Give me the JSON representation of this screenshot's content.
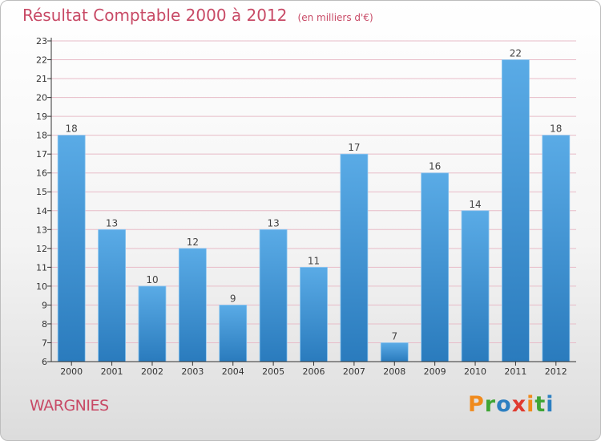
{
  "title": "Résultat Comptable 2000 à 2012",
  "subtitle": "(en milliers d'€)",
  "place": "WARGNIES",
  "brand": {
    "letters": [
      "P",
      "r",
      "o",
      "x",
      "i",
      "t",
      "i"
    ],
    "colors": [
      "#f08a1c",
      "#3fa535",
      "#2c7fc1",
      "#e03a2f",
      "#f08a1c",
      "#3fa535",
      "#2c7fc1"
    ]
  },
  "colors": {
    "title": "#c84a66",
    "bar_light": "#5aabe6",
    "bar_dark": "#2a7bbd",
    "grid": "#e8bcc8",
    "axis": "#333333"
  },
  "chart_data": {
    "type": "bar",
    "title": "Résultat Comptable 2000 à 2012",
    "subtitle": "(en milliers d'€)",
    "categories": [
      "2000",
      "2001",
      "2002",
      "2003",
      "2004",
      "2005",
      "2006",
      "2007",
      "2008",
      "2009",
      "2010",
      "2011",
      "2012"
    ],
    "values": [
      18,
      13,
      10,
      12,
      9,
      13,
      11,
      17,
      7,
      16,
      14,
      22,
      18
    ],
    "ylim": [
      6,
      23
    ],
    "yticks": [
      6,
      7,
      8,
      9,
      10,
      11,
      12,
      13,
      14,
      15,
      16,
      17,
      18,
      19,
      20,
      21,
      22,
      23
    ],
    "xlabel": "",
    "ylabel": "",
    "grid": true,
    "legend": "none"
  }
}
